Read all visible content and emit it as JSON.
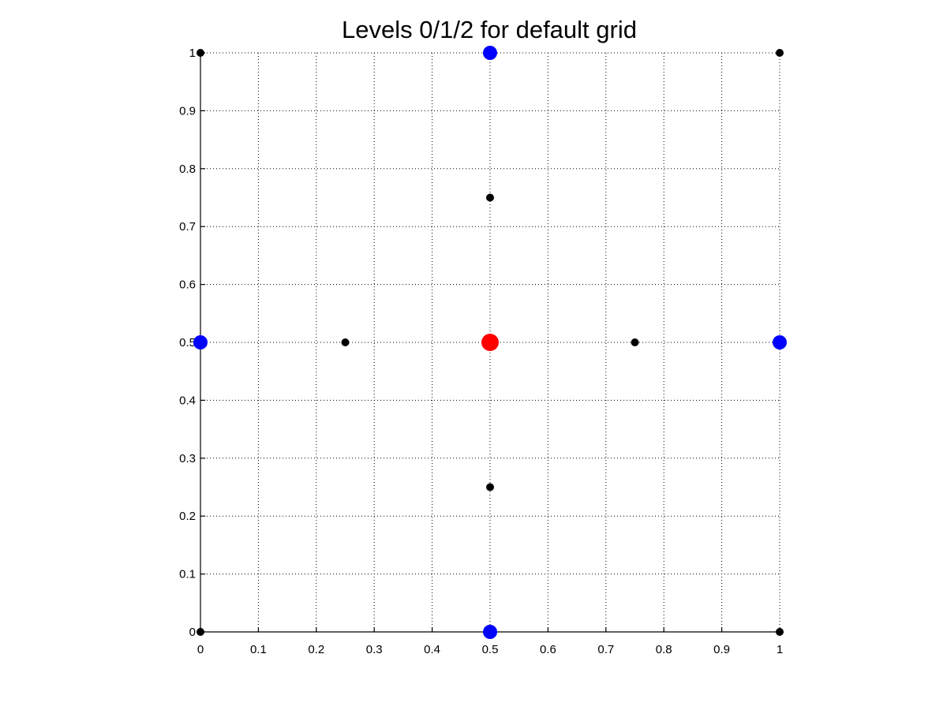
{
  "chart_data": {
    "type": "scatter",
    "title": "Levels 0/1/2 for default grid",
    "xlabel": "",
    "ylabel": "",
    "xlim": [
      0,
      1
    ],
    "ylim": [
      0,
      1
    ],
    "grid": true,
    "x_ticks": [
      "0",
      "0.1",
      "0.2",
      "0.3",
      "0.4",
      "0.5",
      "0.6",
      "0.7",
      "0.8",
      "0.9",
      "1"
    ],
    "y_ticks": [
      "0",
      "0.1",
      "0.2",
      "0.3",
      "0.4",
      "0.5",
      "0.6",
      "0.7",
      "0.8",
      "0.9",
      "1"
    ],
    "series": [
      {
        "color": "#000000",
        "marker": "small",
        "points": [
          [
            0,
            0
          ],
          [
            1,
            0
          ],
          [
            0,
            1
          ],
          [
            1,
            1
          ],
          [
            0.25,
            0.5
          ],
          [
            0.75,
            0.5
          ],
          [
            0.5,
            0.25
          ],
          [
            0.5,
            0.75
          ]
        ]
      },
      {
        "color": "#0000ff",
        "marker": "medium",
        "points": [
          [
            0.5,
            0
          ],
          [
            0.5,
            1
          ],
          [
            0,
            0.5
          ],
          [
            1,
            0.5
          ]
        ]
      },
      {
        "color": "#ff0000",
        "marker": "large",
        "points": [
          [
            0.5,
            0.5
          ]
        ]
      }
    ]
  }
}
